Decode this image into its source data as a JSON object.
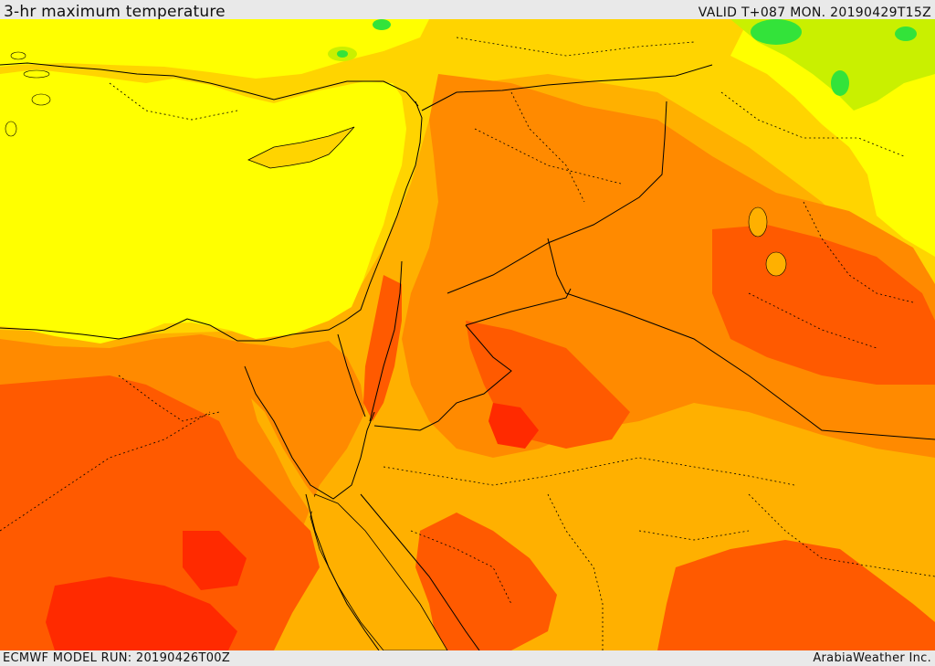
{
  "header": {
    "title": "3-hr maximum temperature",
    "valid_time": "VALID T+087 MON. 20190429T15Z"
  },
  "footer": {
    "model_run": "ECMWF MODEL RUN: 20190426T00Z",
    "credit": "ArabiaWeather Inc."
  },
  "map": {
    "variable": "3-hr maximum temperature",
    "colors": {
      "green": "#33e33a",
      "yellow_green": "#c9f000",
      "yellow": "#ffff00",
      "yellow_orange": "#ffd400",
      "orange": "#ffb000",
      "dark_orange": "#ff8a00",
      "red_orange": "#ff5a00",
      "red": "#ff2a00",
      "border_line": "#000000"
    }
  }
}
